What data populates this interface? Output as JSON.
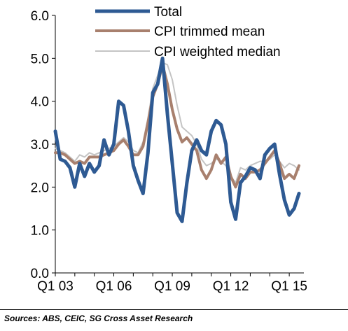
{
  "chart_data": {
    "type": "line",
    "title": "",
    "xlabel": "",
    "ylabel": "",
    "ylim": [
      0,
      6
    ],
    "yticks": [
      "0.0",
      "1.0",
      "2.0",
      "3.0",
      "4.0",
      "5.0",
      "6.0"
    ],
    "xlim": [
      2003.0,
      2015.75
    ],
    "xticks": [
      {
        "label": "Q1 03",
        "x": 2003.0
      },
      {
        "label": "Q1 06",
        "x": 2006.0
      },
      {
        "label": "Q1 09",
        "x": 2009.0
      },
      {
        "label": "Q1 12",
        "x": 2012.0
      },
      {
        "label": "Q1 15",
        "x": 2015.0
      }
    ],
    "grid": false,
    "legend_position": "top-center",
    "series": [
      {
        "name": "Total",
        "color": "#2e5a93",
        "points": [
          [
            2003.0,
            3.3
          ],
          [
            2003.25,
            2.65
          ],
          [
            2003.5,
            2.6
          ],
          [
            2003.75,
            2.45
          ],
          [
            2004.0,
            2.0
          ],
          [
            2004.25,
            2.55
          ],
          [
            2004.5,
            2.25
          ],
          [
            2004.75,
            2.55
          ],
          [
            2005.0,
            2.35
          ],
          [
            2005.25,
            2.5
          ],
          [
            2005.5,
            3.1
          ],
          [
            2005.75,
            2.75
          ],
          [
            2006.0,
            3.0
          ],
          [
            2006.25,
            4.0
          ],
          [
            2006.5,
            3.9
          ],
          [
            2006.75,
            3.3
          ],
          [
            2007.0,
            2.5
          ],
          [
            2007.25,
            2.15
          ],
          [
            2007.5,
            1.85
          ],
          [
            2007.75,
            2.8
          ],
          [
            2008.0,
            4.2
          ],
          [
            2008.25,
            4.4
          ],
          [
            2008.5,
            5.0
          ],
          [
            2008.75,
            3.7
          ],
          [
            2009.0,
            2.55
          ],
          [
            2009.25,
            1.4
          ],
          [
            2009.5,
            1.2
          ],
          [
            2009.75,
            2.1
          ],
          [
            2010.0,
            2.85
          ],
          [
            2010.25,
            3.1
          ],
          [
            2010.5,
            2.85
          ],
          [
            2010.75,
            2.75
          ],
          [
            2011.0,
            3.3
          ],
          [
            2011.25,
            3.55
          ],
          [
            2011.5,
            3.45
          ],
          [
            2011.75,
            3.0
          ],
          [
            2012.0,
            1.65
          ],
          [
            2012.25,
            1.25
          ],
          [
            2012.5,
            2.1
          ],
          [
            2012.75,
            2.25
          ],
          [
            2013.0,
            2.45
          ],
          [
            2013.25,
            2.4
          ],
          [
            2013.5,
            2.2
          ],
          [
            2013.75,
            2.75
          ],
          [
            2014.0,
            2.9
          ],
          [
            2014.25,
            3.0
          ],
          [
            2014.5,
            2.3
          ],
          [
            2014.75,
            1.7
          ],
          [
            2015.0,
            1.35
          ],
          [
            2015.25,
            1.5
          ],
          [
            2015.5,
            1.85
          ]
        ]
      },
      {
        "name": "CPI trimmed mean",
        "color": "#a8806e",
        "points": [
          [
            2003.0,
            2.8
          ],
          [
            2003.25,
            2.8
          ],
          [
            2003.5,
            2.75
          ],
          [
            2003.75,
            2.65
          ],
          [
            2004.0,
            2.55
          ],
          [
            2004.25,
            2.6
          ],
          [
            2004.5,
            2.55
          ],
          [
            2004.75,
            2.7
          ],
          [
            2005.0,
            2.7
          ],
          [
            2005.25,
            2.7
          ],
          [
            2005.5,
            2.75
          ],
          [
            2005.75,
            2.8
          ],
          [
            2006.0,
            2.85
          ],
          [
            2006.25,
            3.0
          ],
          [
            2006.5,
            3.1
          ],
          [
            2006.75,
            2.95
          ],
          [
            2007.0,
            2.75
          ],
          [
            2007.25,
            2.75
          ],
          [
            2007.5,
            2.95
          ],
          [
            2007.75,
            3.5
          ],
          [
            2008.0,
            4.1
          ],
          [
            2008.25,
            4.4
          ],
          [
            2008.5,
            4.85
          ],
          [
            2008.75,
            4.4
          ],
          [
            2009.0,
            3.8
          ],
          [
            2009.25,
            3.35
          ],
          [
            2009.5,
            3.05
          ],
          [
            2009.75,
            3.15
          ],
          [
            2010.0,
            3.0
          ],
          [
            2010.25,
            2.85
          ],
          [
            2010.5,
            2.4
          ],
          [
            2010.75,
            2.2
          ],
          [
            2011.0,
            2.4
          ],
          [
            2011.25,
            2.75
          ],
          [
            2011.5,
            2.55
          ],
          [
            2011.75,
            2.7
          ],
          [
            2012.0,
            2.25
          ],
          [
            2012.25,
            2.0
          ],
          [
            2012.5,
            2.3
          ],
          [
            2012.75,
            2.2
          ],
          [
            2013.0,
            2.35
          ],
          [
            2013.25,
            2.35
          ],
          [
            2013.5,
            2.4
          ],
          [
            2013.75,
            2.55
          ],
          [
            2014.0,
            2.7
          ],
          [
            2014.25,
            2.85
          ],
          [
            2014.5,
            2.55
          ],
          [
            2014.75,
            2.2
          ],
          [
            2015.0,
            2.3
          ],
          [
            2015.25,
            2.2
          ],
          [
            2015.5,
            2.5
          ]
        ]
      },
      {
        "name": "CPI weighted median",
        "color": "#c4c4c4",
        "points": [
          [
            2003.0,
            2.9
          ],
          [
            2003.25,
            2.85
          ],
          [
            2003.5,
            2.8
          ],
          [
            2003.75,
            2.7
          ],
          [
            2004.0,
            2.6
          ],
          [
            2004.25,
            2.75
          ],
          [
            2004.5,
            2.7
          ],
          [
            2004.75,
            2.8
          ],
          [
            2005.0,
            2.75
          ],
          [
            2005.25,
            2.8
          ],
          [
            2005.5,
            2.85
          ],
          [
            2005.75,
            2.9
          ],
          [
            2006.0,
            2.95
          ],
          [
            2006.25,
            3.05
          ],
          [
            2006.5,
            3.15
          ],
          [
            2006.75,
            3.05
          ],
          [
            2007.0,
            2.85
          ],
          [
            2007.25,
            2.8
          ],
          [
            2007.5,
            3.05
          ],
          [
            2007.75,
            3.6
          ],
          [
            2008.0,
            4.3
          ],
          [
            2008.25,
            4.6
          ],
          [
            2008.5,
            4.9
          ],
          [
            2008.75,
            4.85
          ],
          [
            2009.0,
            4.5
          ],
          [
            2009.25,
            3.9
          ],
          [
            2009.5,
            3.4
          ],
          [
            2009.75,
            3.3
          ],
          [
            2010.0,
            3.2
          ],
          [
            2010.25,
            3.0
          ],
          [
            2010.5,
            2.65
          ],
          [
            2010.75,
            2.5
          ],
          [
            2011.0,
            2.55
          ],
          [
            2011.25,
            2.65
          ],
          [
            2011.5,
            2.6
          ],
          [
            2011.75,
            2.5
          ],
          [
            2012.0,
            2.25
          ],
          [
            2012.25,
            2.1
          ],
          [
            2012.5,
            2.45
          ],
          [
            2012.75,
            2.4
          ],
          [
            2013.0,
            2.5
          ],
          [
            2013.25,
            2.55
          ],
          [
            2013.5,
            2.6
          ],
          [
            2013.75,
            2.6
          ],
          [
            2014.0,
            2.65
          ],
          [
            2014.25,
            2.75
          ],
          [
            2014.5,
            2.6
          ],
          [
            2014.75,
            2.45
          ],
          [
            2015.0,
            2.55
          ],
          [
            2015.25,
            2.5
          ],
          [
            2015.5,
            2.4
          ]
        ]
      }
    ]
  },
  "source": "Sources: ABS, CEIC, SG Cross Asset Research"
}
